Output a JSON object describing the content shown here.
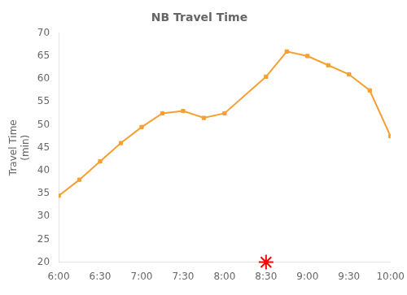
{
  "chart_data": {
    "type": "line",
    "title": "NB Travel Time",
    "y_label": "Travel Time\n(min)",
    "xlim": [
      360,
      600
    ],
    "ylim": [
      20,
      70
    ],
    "xticks": [
      {
        "value": 360,
        "label": "6:00"
      },
      {
        "value": 390,
        "label": "6:30"
      },
      {
        "value": 420,
        "label": "7:00"
      },
      {
        "value": 450,
        "label": "7:30"
      },
      {
        "value": 480,
        "label": "8:00"
      },
      {
        "value": 510,
        "label": "8:30"
      },
      {
        "value": 540,
        "label": "9:00"
      },
      {
        "value": 570,
        "label": "9:30"
      },
      {
        "value": 600,
        "label": "10:00"
      }
    ],
    "yticks": [
      20,
      25,
      30,
      35,
      40,
      45,
      50,
      55,
      60,
      65,
      70
    ],
    "grid": false,
    "series": [
      {
        "type": "line",
        "color": "#F5A032",
        "marker": "square",
        "x": [
          360,
          375,
          390,
          405,
          420,
          435,
          450,
          465,
          480,
          510,
          525,
          540,
          555,
          570,
          585,
          600
        ],
        "values": [
          34.5,
          38.0,
          42.0,
          46.0,
          49.5,
          52.5,
          53.0,
          51.5,
          52.5,
          60.5,
          66.0,
          65.0,
          63.0,
          61.0,
          57.5,
          47.5
        ]
      },
      {
        "type": "scatter",
        "color": "#FF0000",
        "marker": "star",
        "x": [
          510
        ],
        "values": [
          20
        ]
      }
    ]
  }
}
